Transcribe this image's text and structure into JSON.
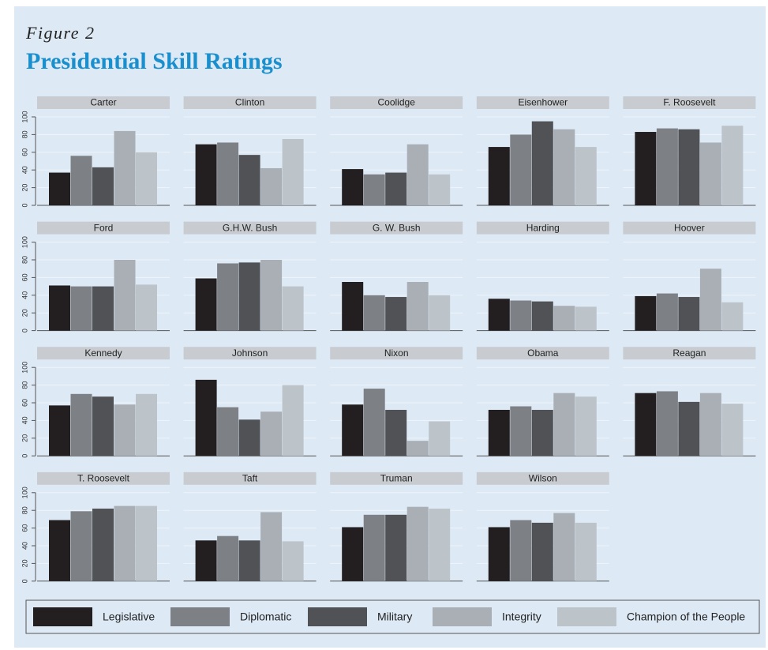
{
  "chart_data": {
    "type": "bar",
    "subtitle": "Figure 2",
    "title": "Presidential Skill Ratings",
    "categories": [
      "Carter",
      "Clinton",
      "Coolidge",
      "Eisenhower",
      "F. Roosevelt",
      "Ford",
      "G.H.W. Bush",
      "G. W. Bush",
      "Harding",
      "Hoover",
      "Kennedy",
      "Johnson",
      "Nixon",
      "Obama",
      "Reagan",
      "T. Roosevelt",
      "Taft",
      "Truman",
      "Wilson"
    ],
    "series": [
      {
        "name": "Legislative",
        "color": "#231f20",
        "values": [
          37,
          69,
          41,
          66,
          83,
          51,
          59,
          55,
          36,
          39,
          57,
          86,
          58,
          52,
          71,
          69,
          46,
          61,
          61
        ]
      },
      {
        "name": "Diplomatic",
        "color": "#7d8185",
        "values": [
          56,
          71,
          35,
          80,
          87,
          50,
          76,
          40,
          34,
          42,
          70,
          55,
          76,
          56,
          73,
          79,
          51,
          75,
          69
        ]
      },
      {
        "name": "Military",
        "color": "#505256",
        "values": [
          43,
          57,
          37,
          95,
          86,
          50,
          77,
          38,
          33,
          38,
          67,
          41,
          52,
          52,
          61,
          82,
          46,
          75,
          66
        ]
      },
      {
        "name": "Integrity",
        "color": "#a9afb5",
        "values": [
          84,
          42,
          69,
          86,
          71,
          80,
          80,
          55,
          28,
          70,
          58,
          50,
          17,
          71,
          71,
          85,
          78,
          84,
          77
        ]
      },
      {
        "name": "Champion of the People",
        "color": "#bcc4ca",
        "values": [
          60,
          75,
          35,
          66,
          90,
          52,
          50,
          40,
          27,
          32,
          70,
          80,
          39,
          67,
          59,
          85,
          45,
          82,
          66
        ]
      }
    ],
    "ylim": [
      0,
      100
    ],
    "yticks": [
      0,
      20,
      40,
      60,
      80,
      100
    ],
    "grid": true
  }
}
